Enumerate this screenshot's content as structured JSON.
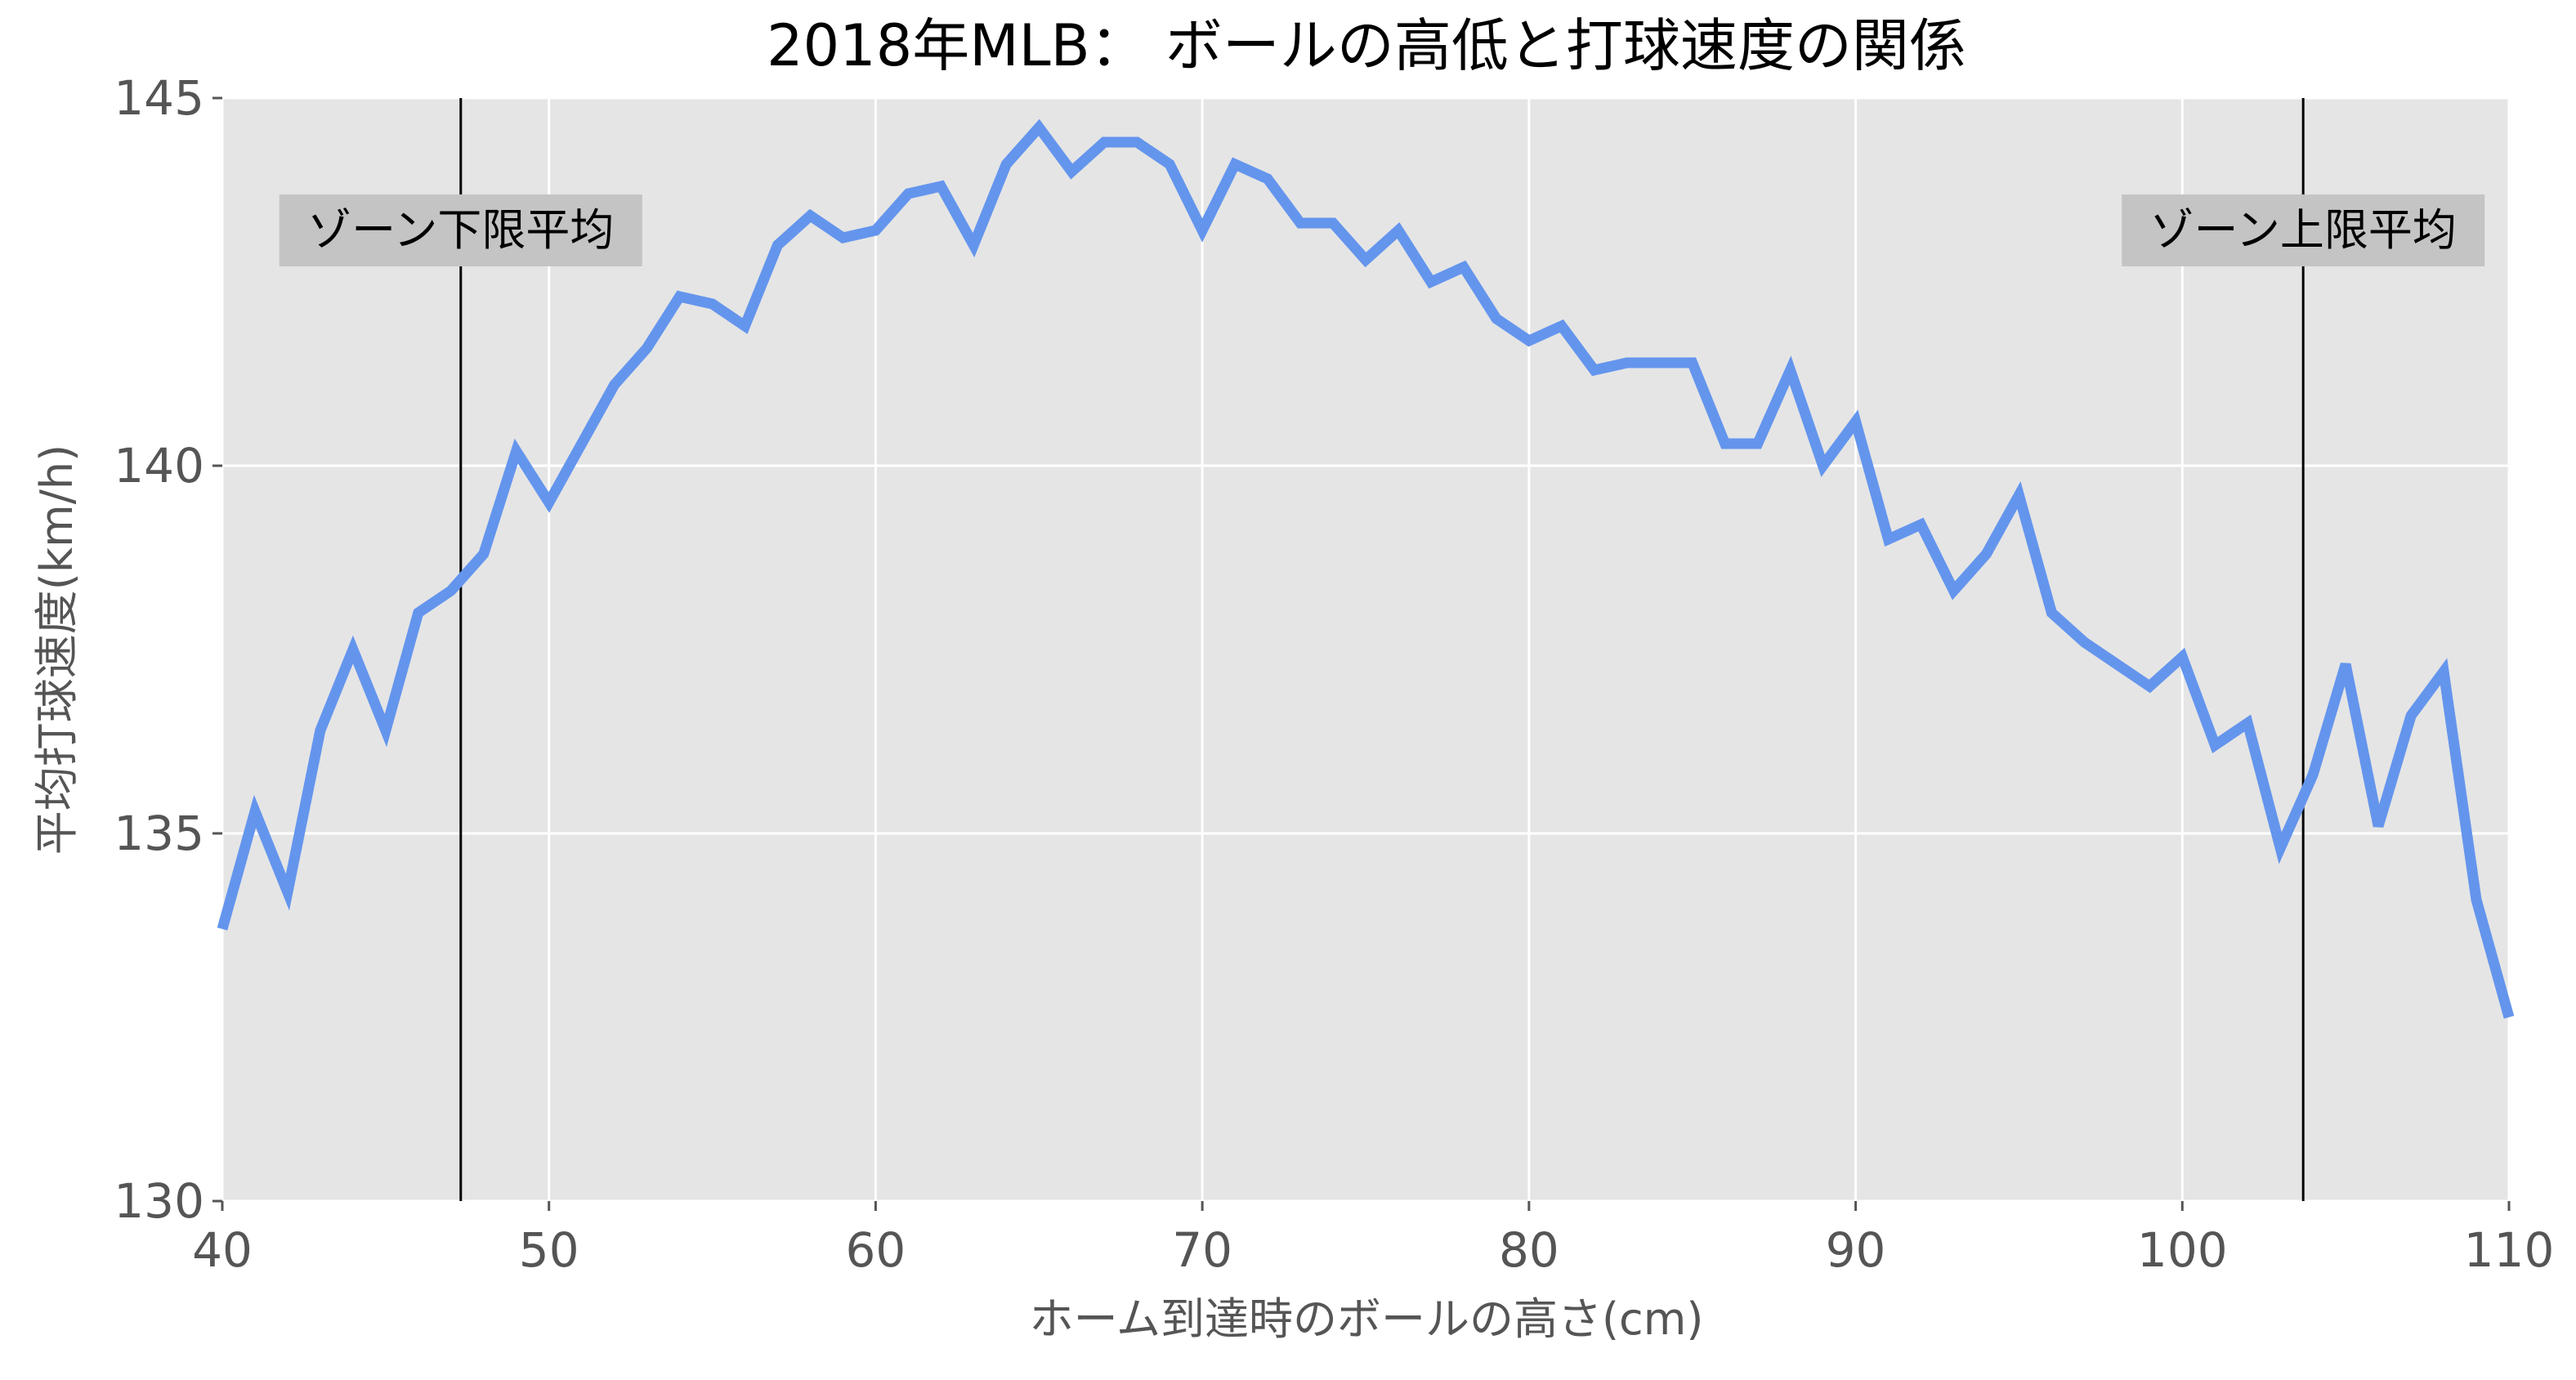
{
  "chart_data": {
    "type": "line",
    "title": "2018年MLB： ボールの高低と打球速度の関係",
    "xlabel": "ホーム到達時のボールの高さ(cm)",
    "ylabel": "平均打球速度(km/h)",
    "xlim": [
      40,
      110
    ],
    "ylim": [
      130,
      145
    ],
    "xticks": [
      40,
      50,
      60,
      70,
      80,
      90,
      100,
      110
    ],
    "yticks": [
      130,
      135,
      140,
      145
    ],
    "grid": true,
    "colors": {
      "line": "#6495ED",
      "plot_background": "#E5E5E5",
      "grid": "#FFFFFF",
      "reference_line": "#000000",
      "annotation_box": "#C4C4C4",
      "tick_label": "#555555",
      "title": "#000000"
    },
    "series": [
      {
        "x": [
          40,
          41,
          42,
          43,
          44,
          45,
          46,
          47,
          48,
          49,
          50,
          51,
          52,
          53,
          54,
          55,
          56,
          57,
          58,
          59,
          60,
          61,
          62,
          63,
          64,
          65,
          66,
          67,
          68,
          69,
          70,
          71,
          72,
          73,
          74,
          75,
          76,
          77,
          78,
          79,
          80,
          81,
          82,
          83,
          84,
          85,
          86,
          87,
          88,
          89,
          90,
          91,
          92,
          93,
          94,
          95,
          96,
          97,
          98,
          99,
          100,
          101,
          102,
          103,
          104,
          105,
          106,
          107,
          108,
          109,
          110
        ],
        "y": [
          133.7,
          135.3,
          134.2,
          136.4,
          137.5,
          136.4,
          138.0,
          138.3,
          138.8,
          140.2,
          139.5,
          140.3,
          141.1,
          141.6,
          142.3,
          142.2,
          141.9,
          143.0,
          143.4,
          143.1,
          143.2,
          143.7,
          143.8,
          143.0,
          144.1,
          144.6,
          144.0,
          144.4,
          144.4,
          144.1,
          143.2,
          144.1,
          143.9,
          143.3,
          143.3,
          142.8,
          143.2,
          142.5,
          142.7,
          142.0,
          141.7,
          141.9,
          141.3,
          141.4,
          141.4,
          141.4,
          140.3,
          140.3,
          141.3,
          140.0,
          140.6,
          139.0,
          139.2,
          138.3,
          138.8,
          139.6,
          138.0,
          137.6,
          137.3,
          137.0,
          137.4,
          136.2,
          136.5,
          134.8,
          135.8,
          137.3,
          135.1,
          136.6,
          137.2,
          134.1,
          132.5
        ]
      }
    ],
    "reference_lines": [
      {
        "x": 47.3,
        "label": "ゾーン下限平均"
      },
      {
        "x": 103.7,
        "label": "ゾーン上限平均"
      }
    ]
  }
}
